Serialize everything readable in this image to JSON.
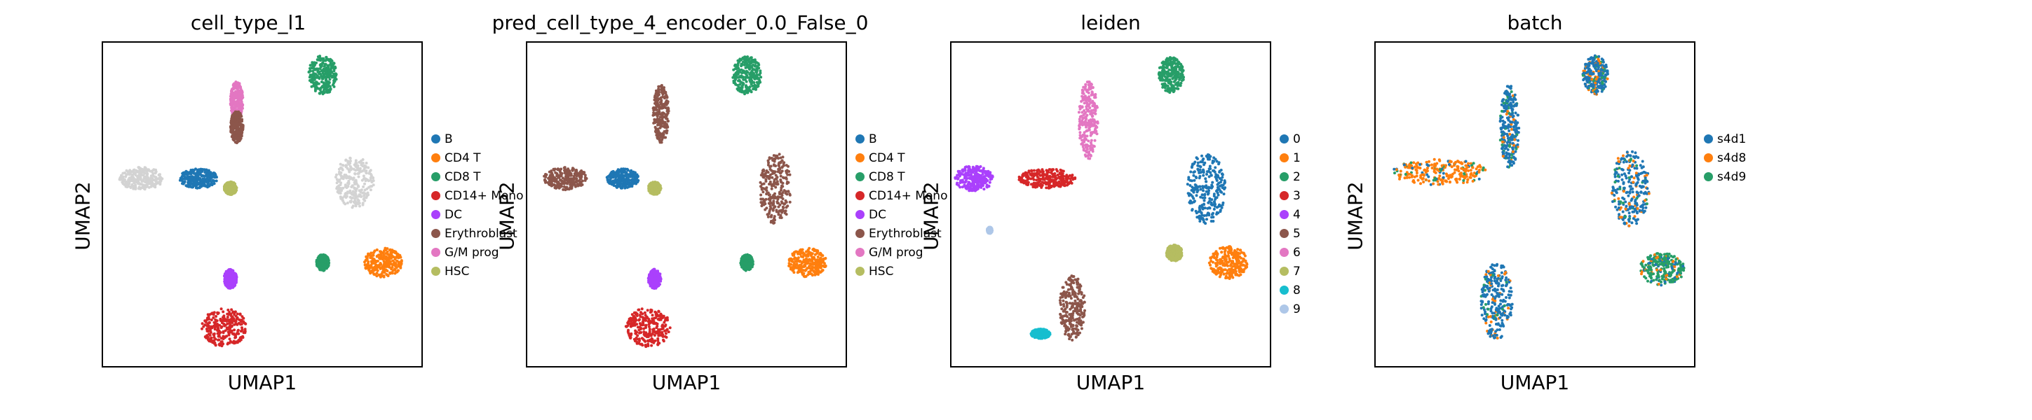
{
  "figure": {
    "panels": [
      {
        "title": "cell_type_l1",
        "xlabel": "UMAP1",
        "ylabel": "UMAP2",
        "legend": [
          {
            "label": "B",
            "color": "#1f77b4"
          },
          {
            "label": "CD4 T",
            "color": "#ff7f0e"
          },
          {
            "label": "CD8 T",
            "color": "#279e68"
          },
          {
            "label": "CD14+ Mono",
            "color": "#d62728"
          },
          {
            "label": "DC",
            "color": "#aa40fc"
          },
          {
            "label": "Erythroblast",
            "color": "#8c564b"
          },
          {
            "label": "G/M prog",
            "color": "#e377c2"
          },
          {
            "label": "HSC",
            "color": "#b5bd61"
          }
        ]
      },
      {
        "title": "pred_cell_type_4_encoder_0.0_False_0",
        "xlabel": "UMAP1",
        "ylabel": "UMAP2",
        "legend": [
          {
            "label": "B",
            "color": "#1f77b4"
          },
          {
            "label": "CD4 T",
            "color": "#ff7f0e"
          },
          {
            "label": "CD8 T",
            "color": "#279e68"
          },
          {
            "label": "CD14+ Mono",
            "color": "#d62728"
          },
          {
            "label": "DC",
            "color": "#aa40fc"
          },
          {
            "label": "Erythroblast",
            "color": "#8c564b"
          },
          {
            "label": "G/M prog",
            "color": "#e377c2"
          },
          {
            "label": "HSC",
            "color": "#b5bd61"
          }
        ]
      },
      {
        "title": "leiden",
        "xlabel": "UMAP1",
        "ylabel": "UMAP2",
        "legend": [
          {
            "label": "0",
            "color": "#1f77b4"
          },
          {
            "label": "1",
            "color": "#ff7f0e"
          },
          {
            "label": "2",
            "color": "#279e68"
          },
          {
            "label": "3",
            "color": "#d62728"
          },
          {
            "label": "4",
            "color": "#aa40fc"
          },
          {
            "label": "5",
            "color": "#8c564b"
          },
          {
            "label": "6",
            "color": "#e377c2"
          },
          {
            "label": "7",
            "color": "#b5bd61"
          },
          {
            "label": "8",
            "color": "#17becf"
          },
          {
            "label": "9",
            "color": "#aec7e8"
          }
        ]
      },
      {
        "title": "batch",
        "xlabel": "UMAP1",
        "ylabel": "UMAP2",
        "legend": [
          {
            "label": "s4d1",
            "color": "#1f77b4"
          },
          {
            "label": "s4d8",
            "color": "#ff7f0e"
          },
          {
            "label": "s4d9",
            "color": "#279e68"
          }
        ]
      }
    ]
  },
  "chart_data": [
    {
      "type": "scatter",
      "title": "cell_type_l1",
      "xlabel": "UMAP1",
      "ylabel": "UMAP2",
      "ticks": "none",
      "legend_position": "right outside",
      "unlabeled_color": "#d3d3d3",
      "clusters": [
        {
          "category": "CD8 T",
          "x": 0.69,
          "y": 0.9
        },
        {
          "category": "G/M prog",
          "x": 0.42,
          "y": 0.82
        },
        {
          "category": "Erythroblast",
          "x": 0.42,
          "y": 0.76
        },
        {
          "category": "unlabeled",
          "x": 0.18,
          "y": 0.58
        },
        {
          "category": "B",
          "x": 0.33,
          "y": 0.58
        },
        {
          "category": "HSC",
          "x": 0.4,
          "y": 0.55
        },
        {
          "category": "unlabeled",
          "x": 0.8,
          "y": 0.56
        },
        {
          "category": "CD4 T",
          "x": 0.88,
          "y": 0.32
        },
        {
          "category": "CD8 T",
          "x": 0.68,
          "y": 0.32
        },
        {
          "category": "DC",
          "x": 0.4,
          "y": 0.28
        },
        {
          "category": "CD14+ Mono",
          "x": 0.38,
          "y": 0.12
        }
      ]
    },
    {
      "type": "scatter",
      "title": "pred_cell_type_4_encoder_0.0_False_0",
      "xlabel": "UMAP1",
      "ylabel": "UMAP2",
      "ticks": "none",
      "legend_position": "right outside",
      "clusters": [
        {
          "category": "CD8 T",
          "x": 0.69,
          "y": 0.9
        },
        {
          "category": "Erythroblast",
          "x": 0.42,
          "y": 0.78
        },
        {
          "category": "Erythroblast",
          "x": 0.15,
          "y": 0.6
        },
        {
          "category": "B",
          "x": 0.3,
          "y": 0.58
        },
        {
          "category": "HSC",
          "x": 0.4,
          "y": 0.55
        },
        {
          "category": "Erythroblast",
          "x": 0.78,
          "y": 0.55
        },
        {
          "category": "CD4 T",
          "x": 0.88,
          "y": 0.32
        },
        {
          "category": "CD8 T",
          "x": 0.68,
          "y": 0.32
        },
        {
          "category": "DC",
          "x": 0.4,
          "y": 0.28
        },
        {
          "category": "CD14+ Mono",
          "x": 0.38,
          "y": 0.12
        }
      ]
    },
    {
      "type": "scatter",
      "title": "leiden",
      "xlabel": "UMAP1",
      "ylabel": "UMAP2",
      "ticks": "none",
      "legend_position": "right outside",
      "clusters": [
        {
          "category": "2",
          "x": 0.69,
          "y": 0.9
        },
        {
          "category": "6",
          "x": 0.43,
          "y": 0.76
        },
        {
          "category": "4",
          "x": 0.07,
          "y": 0.58
        },
        {
          "category": "3",
          "x": 0.3,
          "y": 0.58
        },
        {
          "category": "0",
          "x": 0.8,
          "y": 0.55
        },
        {
          "category": "7",
          "x": 0.7,
          "y": 0.35
        },
        {
          "category": "1",
          "x": 0.87,
          "y": 0.32
        },
        {
          "category": "5",
          "x": 0.38,
          "y": 0.18
        },
        {
          "category": "8",
          "x": 0.28,
          "y": 0.1
        },
        {
          "category": "9",
          "x": 0.12,
          "y": 0.42
        }
      ]
    },
    {
      "type": "scatter",
      "title": "batch",
      "xlabel": "UMAP1",
      "ylabel": "UMAP2",
      "ticks": "none",
      "legend_position": "right outside",
      "clusters": [
        {
          "category": "s4d1",
          "x": 0.69,
          "y": 0.9
        },
        {
          "category": "s4d1",
          "x": 0.42,
          "y": 0.74
        },
        {
          "category": "s4d8",
          "x": 0.2,
          "y": 0.6
        },
        {
          "category": "s4d1",
          "x": 0.8,
          "y": 0.55
        },
        {
          "category": "s4d9",
          "x": 0.9,
          "y": 0.3
        },
        {
          "category": "s4d1",
          "x": 0.38,
          "y": 0.2
        }
      ]
    }
  ]
}
